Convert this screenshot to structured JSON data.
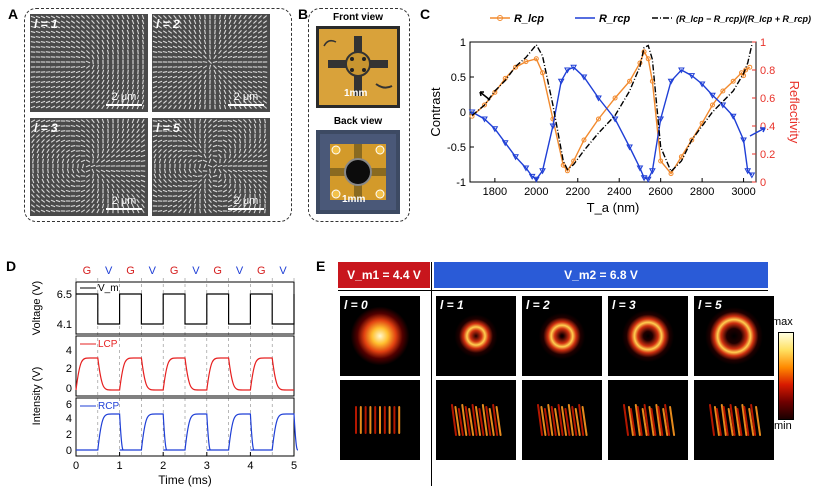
{
  "panels": {
    "a": "A",
    "b": "B",
    "c": "C",
    "d": "D",
    "e": "E"
  },
  "panelA": {
    "images": [
      {
        "label": "l = 1",
        "scale": "2 μm"
      },
      {
        "label": "l = 2",
        "scale": "2 μm"
      },
      {
        "label": "l = 3",
        "scale": "2 μm"
      },
      {
        "label": "l = 5",
        "scale": "2 μm"
      }
    ]
  },
  "panelB": {
    "front_title": "Front view",
    "back_title": "Back view",
    "front_scale": "1mm",
    "back_scale": "1mm"
  },
  "panelC": {
    "legend": {
      "lcp": "R_lcp",
      "rcp": "R_rcp",
      "contrast": "(R_lcp − R_rcp)/(R_lcp + R_rcp)"
    },
    "colors": {
      "lcp": "#f28a2e",
      "rcp": "#1f3fd6",
      "contrast": "#000000",
      "right_axis": "#e8322a"
    },
    "chart_data": {
      "type": "line",
      "xlabel": "T_a (nm)",
      "ylabel": "Contrast",
      "y2label": "Reflectivity",
      "xlim": [
        1680,
        3060
      ],
      "ylim": [
        -1,
        1
      ],
      "y2lim": [
        0,
        1
      ],
      "xticks": [
        1800,
        2000,
        2200,
        2400,
        2600,
        2800,
        3000
      ],
      "yticks": [
        -1,
        -0.5,
        0,
        0.5,
        1
      ],
      "y2ticks": [
        0,
        0.2,
        0.4,
        0.6,
        0.8,
        1
      ],
      "series": [
        {
          "name": "R_lcp",
          "axis": "right",
          "x": [
            1690,
            1750,
            1800,
            1850,
            1900,
            1950,
            2000,
            2030,
            2080,
            2130,
            2150,
            2180,
            2230,
            2300,
            2380,
            2450,
            2500,
            2520,
            2540,
            2560,
            2600,
            2650,
            2700,
            2750,
            2800,
            2850,
            2900,
            2950,
            2990,
            3000,
            3010,
            3030
          ],
          "y": [
            0.47,
            0.55,
            0.64,
            0.74,
            0.82,
            0.86,
            0.88,
            0.78,
            0.45,
            0.12,
            0.08,
            0.15,
            0.3,
            0.45,
            0.6,
            0.72,
            0.85,
            0.93,
            0.88,
            0.72,
            0.15,
            0.06,
            0.18,
            0.3,
            0.42,
            0.55,
            0.65,
            0.72,
            0.78,
            0.76,
            0.8,
            0.82
          ]
        },
        {
          "name": "R_rcp",
          "axis": "right",
          "x": [
            1690,
            1750,
            1800,
            1850,
            1900,
            1950,
            1980,
            2000,
            2030,
            2080,
            2120,
            2150,
            2180,
            2230,
            2300,
            2380,
            2450,
            2500,
            2520,
            2540,
            2560,
            2600,
            2650,
            2700,
            2750,
            2800,
            2850,
            2900,
            2950,
            3000,
            3020,
            3040
          ],
          "y": [
            0.5,
            0.45,
            0.38,
            0.28,
            0.18,
            0.1,
            0.04,
            0.02,
            0.08,
            0.4,
            0.72,
            0.8,
            0.82,
            0.75,
            0.6,
            0.45,
            0.25,
            0.1,
            0.03,
            0.02,
            0.08,
            0.45,
            0.72,
            0.8,
            0.76,
            0.7,
            0.62,
            0.55,
            0.47,
            0.3,
            0.08,
            0.05
          ]
        },
        {
          "name": "(R_lcp − R_rcp)/(R_lcp + R_rcp)",
          "axis": "left",
          "x": [
            1690,
            1750,
            1800,
            1850,
            1900,
            1950,
            2000,
            2030,
            2080,
            2130,
            2150,
            2180,
            2230,
            2300,
            2380,
            2450,
            2500,
            2520,
            2540,
            2560,
            2600,
            2650,
            2700,
            2750,
            2800,
            2850,
            2900,
            2950,
            3000,
            3020,
            3040
          ],
          "y": [
            -0.05,
            0.1,
            0.3,
            0.45,
            0.65,
            0.78,
            0.96,
            0.8,
            0.1,
            -0.7,
            -0.82,
            -0.75,
            -0.55,
            -0.3,
            -0.05,
            0.3,
            0.65,
            0.92,
            0.95,
            0.75,
            -0.5,
            -0.85,
            -0.7,
            -0.4,
            -0.2,
            0.0,
            0.15,
            0.3,
            0.55,
            0.7,
            0.96
          ]
        }
      ]
    }
  },
  "panelD": {
    "phases": [
      "G",
      "V",
      "G",
      "V",
      "G",
      "V",
      "G",
      "V",
      "G",
      "V"
    ],
    "xlabel": "Time (ms)",
    "xticks": [
      "0",
      "1",
      "2",
      "3",
      "4",
      "5"
    ],
    "voltage": {
      "ylabel": "Voltage (V)",
      "yticks": [
        "6.5",
        "4.1"
      ],
      "legend": "V_m",
      "color": "#000000"
    },
    "intensity": {
      "ylabel": "Intensity (V)",
      "lcp_legend": "LCP",
      "rcp_legend": "RCP",
      "lcp_color": "#e62020",
      "rcp_color": "#1f3fd6",
      "lcp_yticks": [
        "4",
        "2",
        "0"
      ],
      "rcp_yticks": [
        "6",
        "4",
        "2",
        "0"
      ]
    },
    "chart_data": {
      "type": "line",
      "xlim": [
        0,
        5
      ],
      "period_ms": 1,
      "voltage_levels_V": [
        6.5,
        4.1
      ],
      "lcp_levels": [
        4.1,
        0
      ],
      "rcp_levels": [
        5.3,
        0
      ]
    }
  },
  "panelE": {
    "vm1_label": "V_m1 = 4.4 V",
    "vm2_label": "V_m2 = 6.8 V",
    "vm1_color": "#c8161d",
    "vm2_color": "#2a5bd7",
    "beams": [
      {
        "label": "l = 0"
      },
      {
        "label": "l = 1"
      },
      {
        "label": "l = 2"
      },
      {
        "label": "l = 3"
      },
      {
        "label": "l = 5"
      }
    ],
    "colorbar": {
      "max": "max",
      "min": "min"
    }
  }
}
